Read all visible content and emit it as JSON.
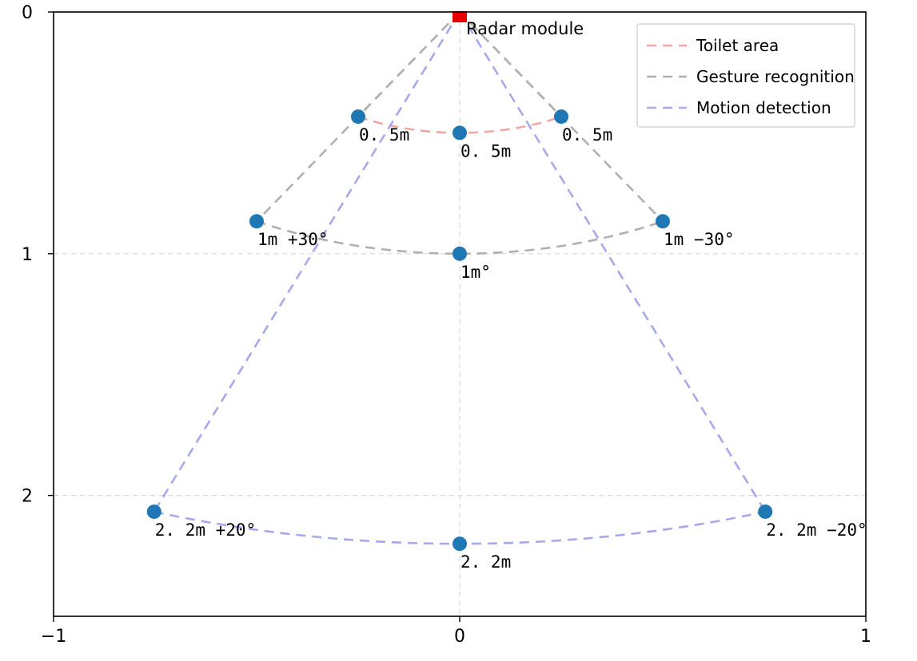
{
  "chart_data": {
    "type": "scatter",
    "title": "",
    "xlabel": "",
    "ylabel": "",
    "xlim": [
      -1,
      1
    ],
    "ylim": [
      2.5,
      0
    ],
    "y_inverted": true,
    "xticks": [
      -1,
      0,
      1
    ],
    "xtick_labels": [
      "−1",
      "0",
      "1"
    ],
    "yticks": [
      0,
      1,
      2
    ],
    "ytick_labels": [
      "0",
      "1",
      "2"
    ],
    "grid": "dashed at ticks",
    "legend_placement": "upper-right",
    "radar": {
      "x": 0,
      "y": 0,
      "label": "Radar module",
      "color": "#e60000"
    },
    "series": [
      {
        "name": "Toilet area",
        "color": "#f4a6a6",
        "range_m": 0.5,
        "half_angle_deg": 30
      },
      {
        "name": "Gesture recognition",
        "color": "#b0b0b0",
        "range_m": 1.0,
        "half_angle_deg": 30
      },
      {
        "name": "Motion detection",
        "color": "#a8a8ec",
        "range_m": 2.2,
        "half_angle_deg": 20
      }
    ],
    "points": [
      {
        "x": -0.25,
        "y": 0.433,
        "label": "0. 5m",
        "label_dx": 0,
        "label_dy": 1
      },
      {
        "x": 0.0,
        "y": 0.5,
        "label": "0. 5m",
        "label_dx": 0,
        "label_dy": 1
      },
      {
        "x": 0.25,
        "y": 0.433,
        "label": "0. 5m",
        "label_dx": 0,
        "label_dy": 1
      },
      {
        "x": -0.5,
        "y": 0.866,
        "label": "1m  +30°",
        "label_dx": 0,
        "label_dy": 1
      },
      {
        "x": 0.0,
        "y": 1.0,
        "label": "1m°",
        "label_dx": 0,
        "label_dy": 1
      },
      {
        "x": 0.5,
        "y": 0.866,
        "label": "1m  −30°",
        "label_dx": 0,
        "label_dy": 1
      },
      {
        "x": -0.7524,
        "y": 2.0673,
        "label": "2. 2m  +20°",
        "label_dx": 0,
        "label_dy": 1
      },
      {
        "x": 0.0,
        "y": 2.2,
        "label": "2. 2m",
        "label_dx": 0,
        "label_dy": 1
      },
      {
        "x": 0.7524,
        "y": 2.0673,
        "label": "2. 2m −20°",
        "label_dx": 0,
        "label_dy": 1
      }
    ],
    "point_color": "#1f77b4"
  }
}
